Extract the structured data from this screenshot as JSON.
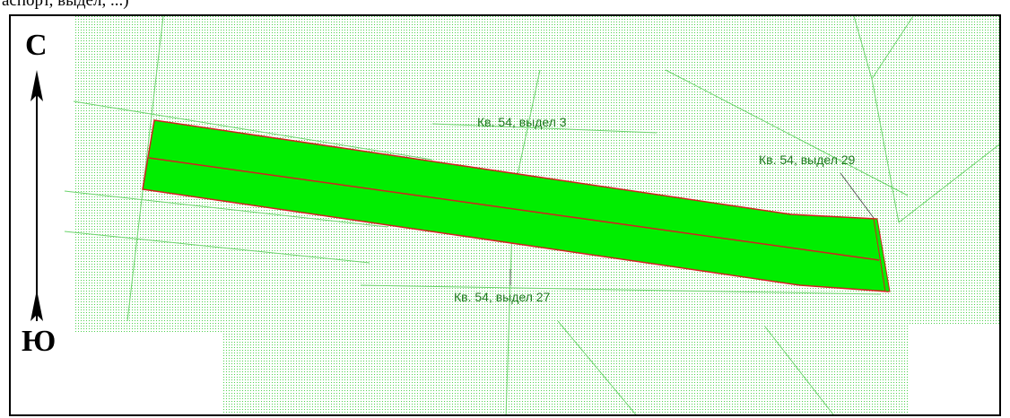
{
  "header": {
    "partial_text": "аспорт, выдел, ...)"
  },
  "compass": {
    "north": "С",
    "south": "Ю"
  },
  "labels": {
    "plot_3": "Кв. 54, выдел 3",
    "plot_29": "Кв. 54, выдел 29",
    "plot_27": "Кв. 54, выдел 27"
  },
  "colors": {
    "plot_fill": "#00ee00",
    "plot_outline": "#d42020",
    "hatch": "#4fd14f",
    "label_text": "#1d7a1d"
  }
}
